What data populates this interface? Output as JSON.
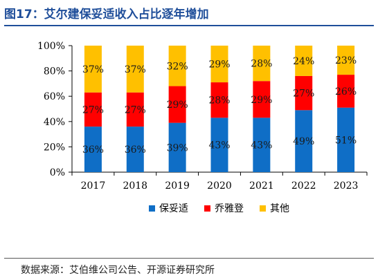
{
  "figure_title": "图17：艾尔建保妥适收入占比逐年增加",
  "source_note": "数据来源：艾伯维公司公告、开源证券研究所",
  "colors": {
    "保妥适": "#0f6ec6",
    "乔雅登": "#ff0000",
    "其他": "#ffc000",
    "title": "#1f4e9a"
  },
  "chart_data": {
    "type": "bar",
    "stacked": true,
    "percent": true,
    "categories": [
      "2017",
      "2018",
      "2019",
      "2020",
      "2021",
      "2022",
      "2023"
    ],
    "series": [
      {
        "name": "保妥适",
        "values": [
          36,
          36,
          39,
          43,
          43,
          49,
          51
        ],
        "labels": [
          "36%",
          "36%",
          "39%",
          "43%",
          "43%",
          "49%",
          "51%"
        ]
      },
      {
        "name": "乔雅登",
        "values": [
          27,
          27,
          29,
          28,
          29,
          27,
          26
        ],
        "labels": [
          "27%",
          "27%",
          "29%",
          "28%",
          "29%",
          "27%",
          "26%"
        ]
      },
      {
        "name": "其他",
        "values": [
          37,
          37,
          32,
          29,
          28,
          24,
          23
        ],
        "labels": [
          "37%",
          "37%",
          "32%",
          "29%",
          "28%",
          "24%",
          "23%"
        ]
      }
    ],
    "ylim": [
      0,
      100
    ],
    "yticks": [
      "0%",
      "20%",
      "40%",
      "60%",
      "80%",
      "100%"
    ],
    "ytick_values": [
      0,
      20,
      40,
      60,
      80,
      100
    ],
    "grid": false,
    "legend": "bottom"
  }
}
